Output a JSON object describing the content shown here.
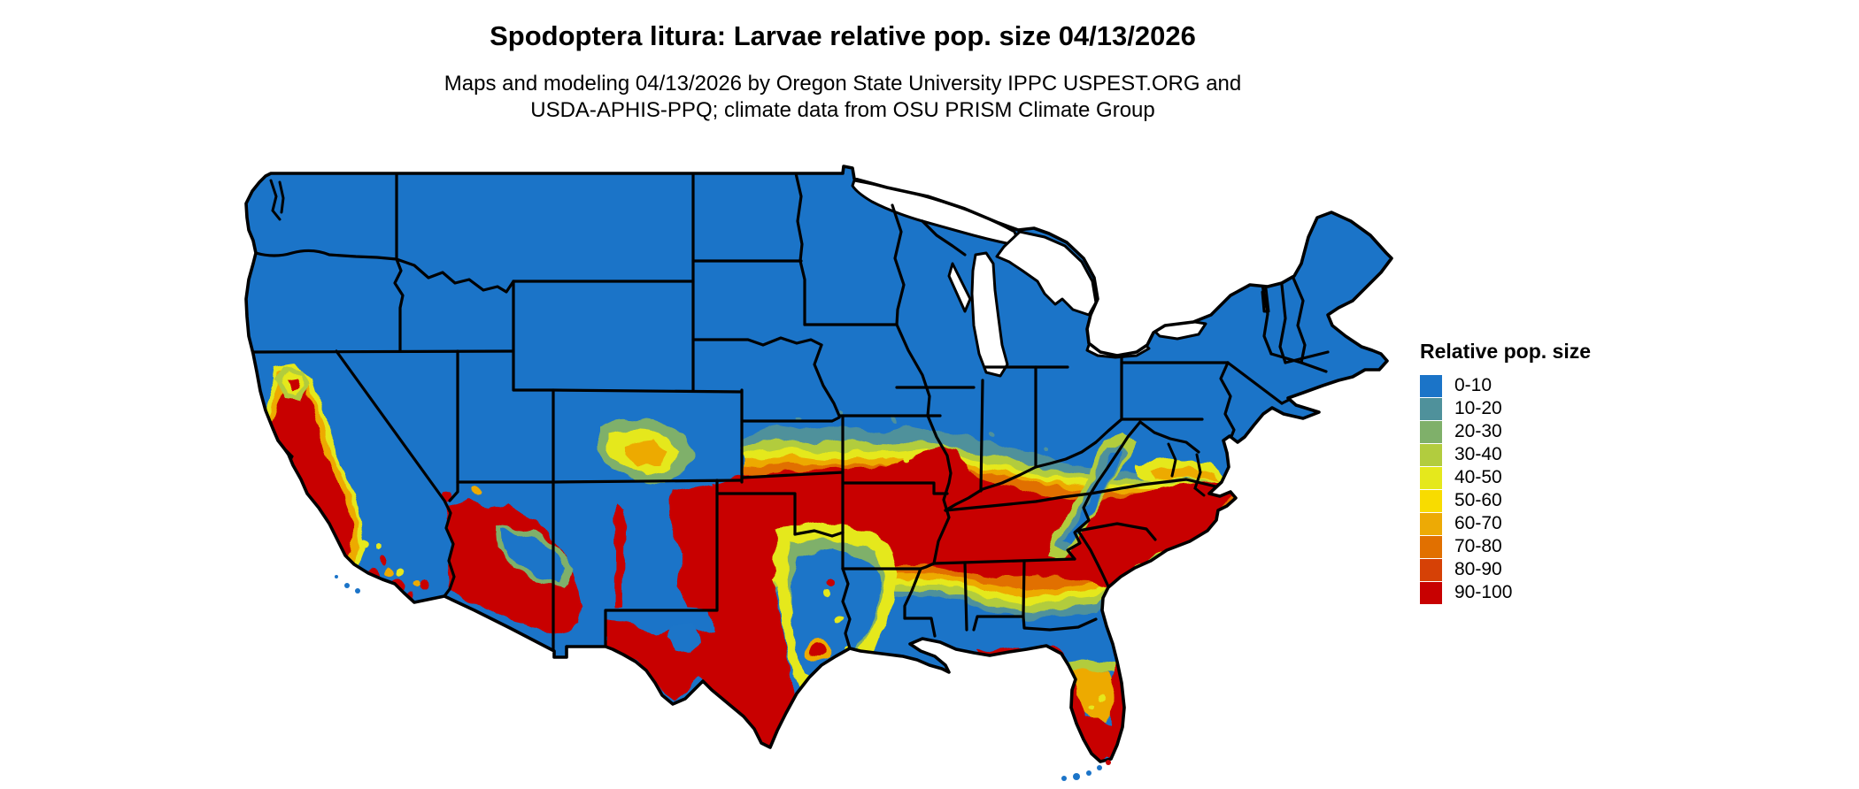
{
  "title": "Spodoptera litura: Larvae relative pop. size 04/13/2026",
  "subtitle_line1": "Maps and modeling 04/13/2026 by Oregon State University IPPC USPEST.ORG and",
  "subtitle_line2": "USDA-APHIS-PPQ; climate data from OSU PRISM Climate Group",
  "legend": {
    "title": "Relative pop. size",
    "items": [
      {
        "label": "0-10",
        "color": "#1B74C8"
      },
      {
        "label": "10-20",
        "color": "#4F919B"
      },
      {
        "label": "20-30",
        "color": "#7FB06A"
      },
      {
        "label": "30-40",
        "color": "#B2CC3E"
      },
      {
        "label": "40-50",
        "color": "#E5E81C"
      },
      {
        "label": "50-60",
        "color": "#F8DC00"
      },
      {
        "label": "60-70",
        "color": "#EDAA05"
      },
      {
        "label": "70-80",
        "color": "#E17000"
      },
      {
        "label": "80-90",
        "color": "#D64106"
      },
      {
        "label": "90-100",
        "color": "#C80101"
      }
    ]
  },
  "chart_data": {
    "type": "heatmap",
    "map_region": "Contiguous United States with state boundaries",
    "variable": "Larvae relative pop. size",
    "date": "04/13/2026",
    "bins": [
      "0-10",
      "10-20",
      "20-30",
      "30-40",
      "40-50",
      "50-60",
      "60-70",
      "70-80",
      "80-90",
      "90-100"
    ],
    "bin_colors": [
      "#1B74C8",
      "#4F919B",
      "#7FB06A",
      "#B2CC3E",
      "#E5E81C",
      "#F8DC00",
      "#EDAA05",
      "#E17000",
      "#D64106",
      "#C80101"
    ],
    "pattern_summary": [
      "Northern and central states 0-10 (blue)",
      "High 90-100 band across OK, AR, southern MO, TN, northern MS/AL, GA, SC, eastern NC, eastern NM, west and south TX",
      "California Central Valley and coast ranges 90-100",
      "Southern Arizona and Rio Grande valley 90-100",
      "Gradient band 10-80 across KS, MO, southern IL/IN, KY and VA",
      "Gulf coast LA, coastal MS/AL and north FL 0-10; FL peninsula coasts and south FL 90-100"
    ]
  }
}
